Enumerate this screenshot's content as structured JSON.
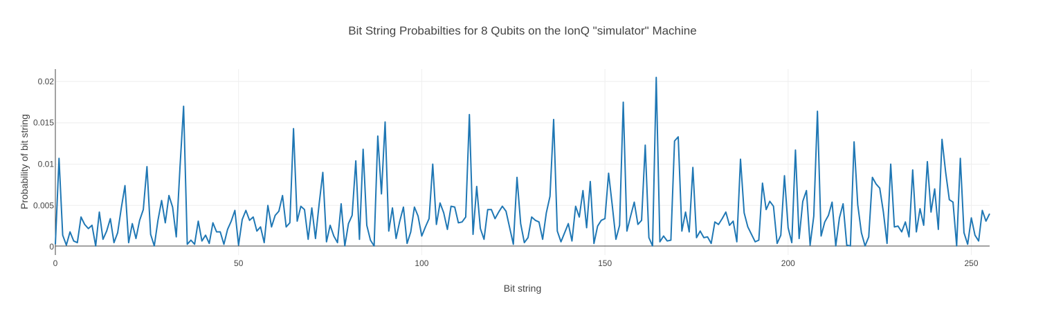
{
  "chart_data": {
    "type": "line",
    "title": "Bit String Probabilties for 8 Qubits on the IonQ \"simulator\" Machine",
    "xlabel": "Bit string",
    "ylabel": "Probability of bit string",
    "xlim": [
      0,
      255
    ],
    "ylim": [
      -0.001,
      0.0215
    ],
    "x_ticks": [
      0,
      50,
      100,
      150,
      200,
      250
    ],
    "x_tick_labels": [
      "0",
      "50",
      "100",
      "150",
      "200",
      "250"
    ],
    "y_ticks": [
      0,
      0.005,
      0.01,
      0.015,
      0.02
    ],
    "y_tick_labels": [
      "0",
      "0.005",
      "0.01",
      "0.015",
      "0.02"
    ],
    "grid": true,
    "legend": "none",
    "series": [
      {
        "color": "#1f77b4",
        "x_start": 0,
        "x_step": 1,
        "values": [
          0.0003,
          0.0107,
          0.0014,
          0.0002,
          0.0018,
          0.0007,
          0.0005,
          0.0036,
          0.0027,
          0.0022,
          0.0026,
          0.0001,
          0.0042,
          0.0009,
          0.0019,
          0.0034,
          0.0005,
          0.0017,
          0.0047,
          0.0074,
          0.0005,
          0.0028,
          0.001,
          0.0032,
          0.0045,
          0.0097,
          0.0015,
          0.0001,
          0.0032,
          0.0056,
          0.0029,
          0.0062,
          0.0048,
          0.0012,
          0.0095,
          0.017,
          0.0003,
          0.0008,
          0.0003,
          0.0031,
          0.0007,
          0.0014,
          0.0004,
          0.0029,
          0.0018,
          0.0018,
          0.0003,
          0.0021,
          0.0031,
          0.0044,
          0.0002,
          0.0033,
          0.0044,
          0.0032,
          0.0036,
          0.0019,
          0.0024,
          0.0005,
          0.005,
          0.0024,
          0.0038,
          0.0043,
          0.0062,
          0.0024,
          0.0029,
          0.0143,
          0.0031,
          0.0049,
          0.0045,
          0.0009,
          0.0047,
          0.001,
          0.0052,
          0.009,
          0.0006,
          0.0026,
          0.0013,
          0.0005,
          0.0052,
          0.0001,
          0.0028,
          0.0038,
          0.0104,
          0.0009,
          0.0118,
          0.0026,
          0.0008,
          0.0001,
          0.0134,
          0.0064,
          0.0151,
          0.0019,
          0.0047,
          0.001,
          0.0031,
          0.0048,
          0.0004,
          0.0018,
          0.0048,
          0.0037,
          0.0013,
          0.0024,
          0.0034,
          0.01,
          0.0027,
          0.0053,
          0.0041,
          0.0021,
          0.0049,
          0.0048,
          0.0029,
          0.003,
          0.0036,
          0.016,
          0.0015,
          0.0073,
          0.0022,
          0.0009,
          0.0045,
          0.0045,
          0.0034,
          0.0042,
          0.0049,
          0.0043,
          0.0023,
          0.0003,
          0.0084,
          0.0028,
          0.0005,
          0.0011,
          0.0036,
          0.0032,
          0.003,
          0.0009,
          0.0041,
          0.0061,
          0.0154,
          0.0019,
          0.0006,
          0.0017,
          0.0028,
          0.0007,
          0.0049,
          0.0036,
          0.0068,
          0.0023,
          0.0079,
          0.0004,
          0.0025,
          0.0032,
          0.0034,
          0.0089,
          0.005,
          0.0009,
          0.0026,
          0.0175,
          0.0019,
          0.0037,
          0.0054,
          0.0027,
          0.0032,
          0.0123,
          0.0011,
          0.0001,
          0.0205,
          0.0006,
          0.0013,
          0.0007,
          0.0008,
          0.0128,
          0.0133,
          0.0019,
          0.0042,
          0.0018,
          0.0096,
          0.0011,
          0.0019,
          0.0011,
          0.0012,
          0.0004,
          0.003,
          0.0027,
          0.0034,
          0.0042,
          0.0026,
          0.0031,
          0.0006,
          0.0106,
          0.0041,
          0.0024,
          0.0015,
          0.0006,
          0.0008,
          0.0077,
          0.0045,
          0.0055,
          0.0049,
          0.0004,
          0.0014,
          0.0086,
          0.0023,
          0.0005,
          0.0117,
          0.001,
          0.0055,
          0.0068,
          0.0002,
          0.0037,
          0.0164,
          0.0013,
          0.003,
          0.0038,
          0.0054,
          0.0001,
          0.0035,
          0.0052,
          0.0002,
          0.0001,
          0.0127,
          0.0051,
          0.0017,
          0.0001,
          0.0012,
          0.0084,
          0.0076,
          0.0071,
          0.0042,
          0.0004,
          0.01,
          0.0024,
          0.0025,
          0.0018,
          0.003,
          0.0012,
          0.0093,
          0.0018,
          0.0046,
          0.0026,
          0.0103,
          0.0042,
          0.007,
          0.0021,
          0.013,
          0.009,
          0.0057,
          0.0054,
          0.0001,
          0.0107,
          0.0017,
          0.0003,
          0.0035,
          0.0014,
          0.0007,
          0.0044,
          0.0031,
          0.004
        ]
      }
    ]
  }
}
